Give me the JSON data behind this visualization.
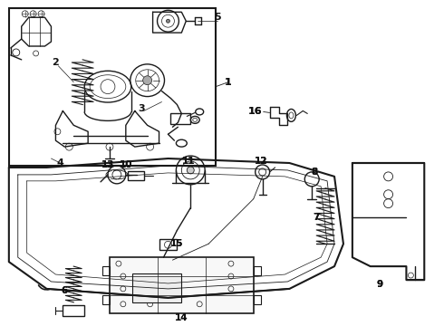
{
  "background_color": "#f0f0f0",
  "fig_width": 4.9,
  "fig_height": 3.6,
  "dpi": 100,
  "image_data": ""
}
